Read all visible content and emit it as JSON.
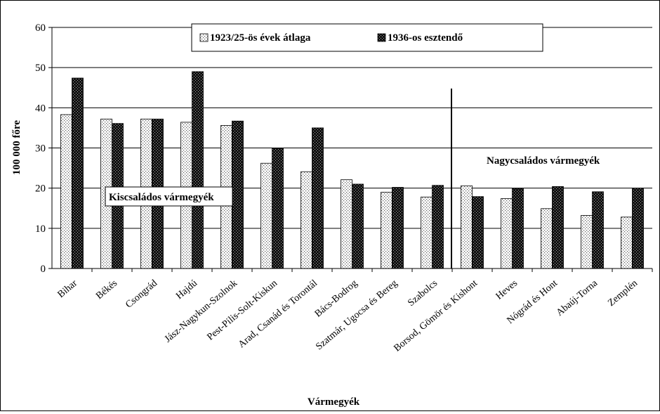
{
  "chart_data": {
    "type": "bar",
    "title": "",
    "xlabel": "Vármegyék",
    "ylabel": "100 000 főre",
    "ylim": [
      0,
      60
    ],
    "yticks": [
      "0",
      "10",
      "20",
      "30",
      "40",
      "50",
      "60"
    ],
    "grid": true,
    "legend_position": "top",
    "categories": [
      "Bihar",
      "Békés",
      "Csongrád",
      "Hajdú",
      "Jász-Nagykun-Szolnok",
      "Pest-Pilis-Solt-Kiskun",
      "Arad, Csanád és Torontál",
      "Bács-Bodrog",
      "Szatmár, Ugocsa és Bereg",
      "Szabolcs",
      "Borsod, Gömör és Kishont",
      "Heves",
      "Nógrád és Hont",
      "Abaúj-Torna",
      "Zemplén"
    ],
    "series": [
      {
        "name": "1923/25-ös évek átlaga",
        "values": [
          38.3,
          37.2,
          37.2,
          36.4,
          35.6,
          26.2,
          24.1,
          22.1,
          19.0,
          17.8,
          20.6,
          17.4,
          14.9,
          13.2,
          12.8
        ]
      },
      {
        "name": "1936-os esztendő",
        "values": [
          47.4,
          36.1,
          37.2,
          49.0,
          36.7,
          30.0,
          35.0,
          21.0,
          20.2,
          20.7,
          17.9,
          19.9,
          20.4,
          19.1,
          20.0
        ]
      }
    ],
    "annotations": {
      "left_group": "Kiscsaládos vármegyék",
      "right_group": "Nagycsaládos vármegyék"
    },
    "divider_after_category": "Szabolcs"
  }
}
